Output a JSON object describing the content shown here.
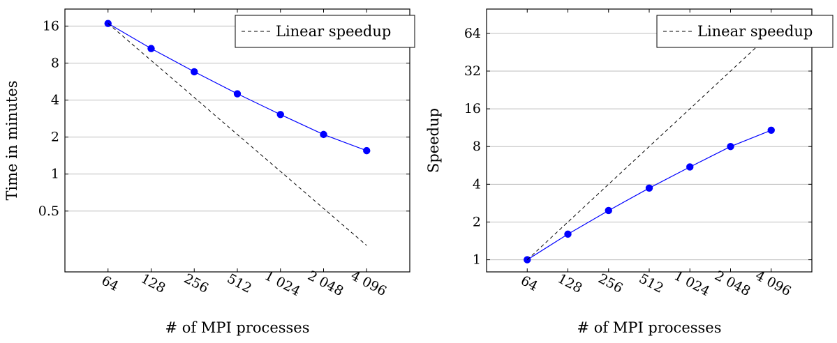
{
  "chart_data": [
    {
      "type": "line",
      "xlabel": "# of MPI processes",
      "ylabel": "Time in minutes",
      "x_scale": "log2",
      "y_scale": "log2",
      "xlim": [
        32,
        8192
      ],
      "ylim": [
        0.16,
        22
      ],
      "grid": "horizontal",
      "legend_position": "top-right",
      "x": [
        64,
        128,
        256,
        512,
        1024,
        2048,
        4096
      ],
      "x_tick_labels": [
        "64",
        "128",
        "256",
        "512",
        "1 024",
        "2 048",
        "4 096"
      ],
      "y_ticks": [
        0.5,
        1,
        2,
        4,
        8,
        16
      ],
      "y_tick_labels": [
        "0.5",
        "1",
        "2",
        "4",
        "8",
        "16"
      ],
      "series": [
        {
          "name": "",
          "style": "solid-markers",
          "color": "#0000ff",
          "values": [
            16.8,
            10.5,
            6.8,
            4.5,
            3.05,
            2.1,
            1.55
          ]
        },
        {
          "name": "Linear speedup",
          "style": "dashed",
          "color": "#000000",
          "values": [
            16.8,
            8.4,
            4.2,
            2.1,
            1.05,
            0.525,
            0.2625
          ]
        }
      ]
    },
    {
      "type": "line",
      "xlabel": "# of MPI processes",
      "ylabel": "Speedup",
      "x_scale": "log2",
      "y_scale": "log2",
      "xlim": [
        32,
        8192
      ],
      "ylim": [
        0.8,
        100
      ],
      "grid": "horizontal",
      "legend_position": "top-right",
      "x": [
        64,
        128,
        256,
        512,
        1024,
        2048,
        4096
      ],
      "x_tick_labels": [
        "64",
        "128",
        "256",
        "512",
        "1 024",
        "2 048",
        "4 096"
      ],
      "y_ticks": [
        1,
        2,
        4,
        8,
        16,
        32,
        64
      ],
      "y_tick_labels": [
        "1",
        "2",
        "4",
        "8",
        "16",
        "32",
        "64"
      ],
      "series": [
        {
          "name": "",
          "style": "solid-markers",
          "color": "#0000ff",
          "values": [
            1.0,
            1.6,
            2.47,
            3.73,
            5.5,
            8.0,
            10.8
          ]
        },
        {
          "name": "Linear speedup",
          "style": "dashed",
          "color": "#000000",
          "values": [
            1,
            2,
            4,
            8,
            16,
            32,
            64
          ]
        }
      ]
    }
  ]
}
